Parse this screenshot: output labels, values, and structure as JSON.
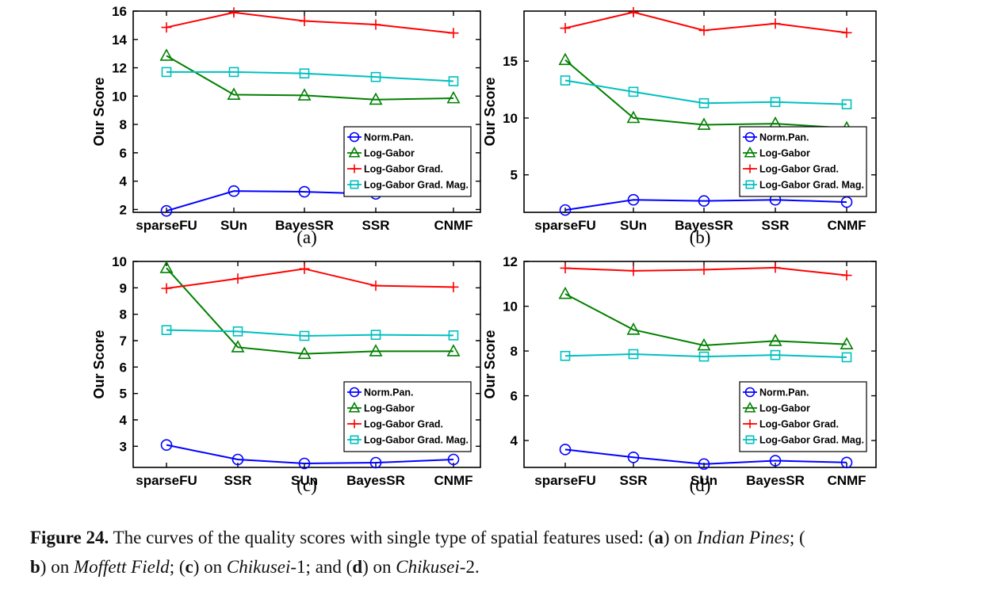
{
  "chart_data": [
    {
      "type": "line",
      "panel_label": "(a)",
      "ylabel": "Our Score",
      "categories": [
        "sparseFU",
        "SUn",
        "BayesSR",
        "SSR",
        "CNMF"
      ],
      "ylim": [
        1.8,
        16
      ],
      "yticks": [
        2,
        4,
        6,
        8,
        10,
        12,
        14,
        16
      ],
      "legend_position": "lower-right",
      "grid": false,
      "series": [
        {
          "name": "Norm.Pan.",
          "color": "#0000ff",
          "marker": "circle",
          "values": [
            1.9,
            3.3,
            3.25,
            3.1,
            3.35
          ]
        },
        {
          "name": "Log-Gabor",
          "color": "#008000",
          "marker": "triangle",
          "values": [
            12.85,
            10.1,
            10.05,
            9.75,
            9.85
          ]
        },
        {
          "name": "Log-Gabor Grad.",
          "color": "#ff0000",
          "marker": "plus",
          "values": [
            14.85,
            15.9,
            15.3,
            15.05,
            14.45
          ]
        },
        {
          "name": "Log-Gabor Grad. Mag.",
          "color": "#00bfbf",
          "marker": "square",
          "values": [
            11.7,
            11.7,
            11.6,
            11.35,
            11.05
          ]
        }
      ]
    },
    {
      "type": "line",
      "panel_label": "(b)",
      "ylabel": "Our Score",
      "categories": [
        "sparseFU",
        "SUn",
        "BayesSR",
        "SSR",
        "CNMF"
      ],
      "ylim": [
        1.7,
        19.4
      ],
      "yticks": [
        5,
        10,
        15
      ],
      "legend_position": "lower-right",
      "grid": false,
      "series": [
        {
          "name": "Norm.Pan.",
          "color": "#0000ff",
          "marker": "circle",
          "values": [
            1.9,
            2.8,
            2.7,
            2.8,
            2.6
          ]
        },
        {
          "name": "Log-Gabor",
          "color": "#008000",
          "marker": "triangle",
          "values": [
            15.1,
            10.0,
            9.4,
            9.5,
            9.1
          ]
        },
        {
          "name": "Log-Gabor Grad.",
          "color": "#ff0000",
          "marker": "plus",
          "values": [
            17.9,
            19.3,
            17.7,
            18.3,
            17.5
          ]
        },
        {
          "name": "Log-Gabor Grad. Mag.",
          "color": "#00bfbf",
          "marker": "square",
          "values": [
            13.3,
            12.3,
            11.3,
            11.4,
            11.2
          ]
        }
      ]
    },
    {
      "type": "line",
      "panel_label": "(c)",
      "ylabel": "Our Score",
      "categories": [
        "sparseFU",
        "SSR",
        "SUn",
        "BayesSR",
        "CNMF"
      ],
      "ylim": [
        2.2,
        10
      ],
      "yticks": [
        3,
        4,
        5,
        6,
        7,
        8,
        9,
        10
      ],
      "legend_position": "lower-right",
      "grid": false,
      "series": [
        {
          "name": "Norm.Pan.",
          "color": "#0000ff",
          "marker": "circle",
          "values": [
            3.05,
            2.5,
            2.35,
            2.38,
            2.5
          ]
        },
        {
          "name": "Log-Gabor",
          "color": "#008000",
          "marker": "triangle",
          "values": [
            9.75,
            6.75,
            6.5,
            6.6,
            6.6
          ]
        },
        {
          "name": "Log-Gabor Grad.",
          "color": "#ff0000",
          "marker": "plus",
          "values": [
            8.98,
            9.35,
            9.72,
            9.08,
            9.03
          ]
        },
        {
          "name": "Log-Gabor Grad. Mag.",
          "color": "#00bfbf",
          "marker": "square",
          "values": [
            7.4,
            7.35,
            7.18,
            7.22,
            7.2
          ]
        }
      ]
    },
    {
      "type": "line",
      "panel_label": "(d)",
      "ylabel": "Our Score",
      "categories": [
        "sparseFU",
        "SSR",
        "SUn",
        "BayesSR",
        "CNMF"
      ],
      "ylim": [
        2.8,
        12
      ],
      "yticks": [
        4,
        6,
        8,
        10,
        12
      ],
      "legend_position": "lower-right",
      "grid": false,
      "series": [
        {
          "name": "Norm.Pan.",
          "color": "#0000ff",
          "marker": "circle",
          "values": [
            3.6,
            3.25,
            2.95,
            3.1,
            3.02
          ]
        },
        {
          "name": "Log-Gabor",
          "color": "#008000",
          "marker": "triangle",
          "values": [
            10.55,
            8.95,
            8.25,
            8.45,
            8.3
          ]
        },
        {
          "name": "Log-Gabor Grad.",
          "color": "#ff0000",
          "marker": "plus",
          "values": [
            11.7,
            11.58,
            11.63,
            11.72,
            11.38
          ]
        },
        {
          "name": "Log-Gabor Grad. Mag.",
          "color": "#00bfbf",
          "marker": "square",
          "values": [
            7.78,
            7.86,
            7.75,
            7.82,
            7.72
          ]
        }
      ]
    }
  ],
  "caption": {
    "figure_label": "Figure 24.",
    "text_1": " The curves of the quality scores with single type of spatial features used: (",
    "a": "a",
    "text_2": ") on ",
    "ds_a": "Indian Pines",
    "text_3": "; (",
    "b": "b",
    "text_4": ") on ",
    "ds_b": "Moffett Field",
    "text_5": "; (",
    "c": "c",
    "text_6": ") on ",
    "ds_c": "Chikusei",
    "text_7": "-1; and (",
    "d": "d",
    "text_8": ") on ",
    "ds_d": "Chikusei",
    "text_9": "-2."
  }
}
